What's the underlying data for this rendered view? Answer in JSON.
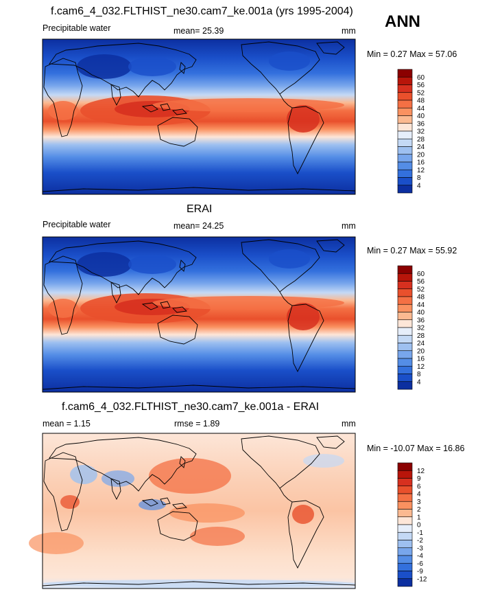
{
  "season": "ANN",
  "panels": [
    {
      "title": "f.cam6_4_032.FLTHIST_ne30.cam7_ke.001a (yrs 1995-2004)",
      "left_label": "Precipitable water",
      "center_label": "mean=  25.39",
      "units": "mm",
      "minmax": "Min =   0.27 Max =  57.06",
      "colorbar": {
        "labels": [
          "60",
          "56",
          "52",
          "48",
          "44",
          "40",
          "36",
          "32",
          "28",
          "24",
          "20",
          "16",
          "12",
          "8",
          "4"
        ],
        "colors": [
          "#8b0000",
          "#b8150a",
          "#d7301f",
          "#e9502c",
          "#f47044",
          "#fa9160",
          "#fbb991",
          "#fde6d8",
          "#e6eefa",
          "#c4d9f5",
          "#9ec0f0",
          "#78a6ec",
          "#548de6",
          "#3370dd",
          "#1a4fc9",
          "#0c2fa0"
        ]
      }
    },
    {
      "title": "ERAI",
      "left_label": "Precipitable water",
      "center_label": "mean=  24.25",
      "units": "mm",
      "minmax": "Min =   0.27 Max =  55.92",
      "colorbar": {
        "labels": [
          "60",
          "56",
          "52",
          "48",
          "44",
          "40",
          "36",
          "32",
          "28",
          "24",
          "20",
          "16",
          "12",
          "8",
          "4"
        ],
        "colors": [
          "#8b0000",
          "#b8150a",
          "#d7301f",
          "#e9502c",
          "#f47044",
          "#fa9160",
          "#fbb991",
          "#fde6d8",
          "#e6eefa",
          "#c4d9f5",
          "#9ec0f0",
          "#78a6ec",
          "#548de6",
          "#3370dd",
          "#1a4fc9",
          "#0c2fa0"
        ]
      }
    },
    {
      "title": "f.cam6_4_032.FLTHIST_ne30.cam7_ke.001a - ERAI",
      "left_label": "mean =   1.15",
      "center_label": "rmse =   1.89",
      "units": "mm",
      "minmax": "Min = -10.07 Max =  16.86",
      "colorbar": {
        "labels": [
          "12",
          "9",
          "6",
          "4",
          "3",
          "2",
          "1",
          "0",
          "-1",
          "-2",
          "-3",
          "-4",
          "-6",
          "-9",
          "-12"
        ],
        "colors": [
          "#8b0000",
          "#b8150a",
          "#d7301f",
          "#e9502c",
          "#f47044",
          "#fa9160",
          "#fbb991",
          "#fde6d8",
          "#e6eefa",
          "#c4d9f5",
          "#9ec0f0",
          "#78a6ec",
          "#548de6",
          "#3370dd",
          "#1a4fc9",
          "#0c2fa0"
        ]
      }
    }
  ],
  "chart_data": [
    {
      "type": "heatmap",
      "title": "f.cam6_4_032.FLTHIST_ne30.cam7_ke.001a (yrs 1995-2004)",
      "variable": "Precipitable water",
      "units": "mm",
      "mean": 25.39,
      "min": 0.27,
      "max": 57.06,
      "levels": [
        4,
        8,
        12,
        16,
        20,
        24,
        28,
        32,
        36,
        40,
        44,
        48,
        52,
        56,
        60
      ]
    },
    {
      "type": "heatmap",
      "title": "ERAI",
      "variable": "Precipitable water",
      "units": "mm",
      "mean": 24.25,
      "min": 0.27,
      "max": 55.92,
      "levels": [
        4,
        8,
        12,
        16,
        20,
        24,
        28,
        32,
        36,
        40,
        44,
        48,
        52,
        56,
        60
      ]
    },
    {
      "type": "heatmap",
      "title": "f.cam6_4_032.FLTHIST_ne30.cam7_ke.001a - ERAI",
      "units": "mm",
      "mean": 1.15,
      "rmse": 1.89,
      "min": -10.07,
      "max": 16.86,
      "levels": [
        -12,
        -9,
        -6,
        -4,
        -3,
        -2,
        -1,
        0,
        1,
        2,
        3,
        4,
        6,
        9,
        12
      ]
    }
  ]
}
